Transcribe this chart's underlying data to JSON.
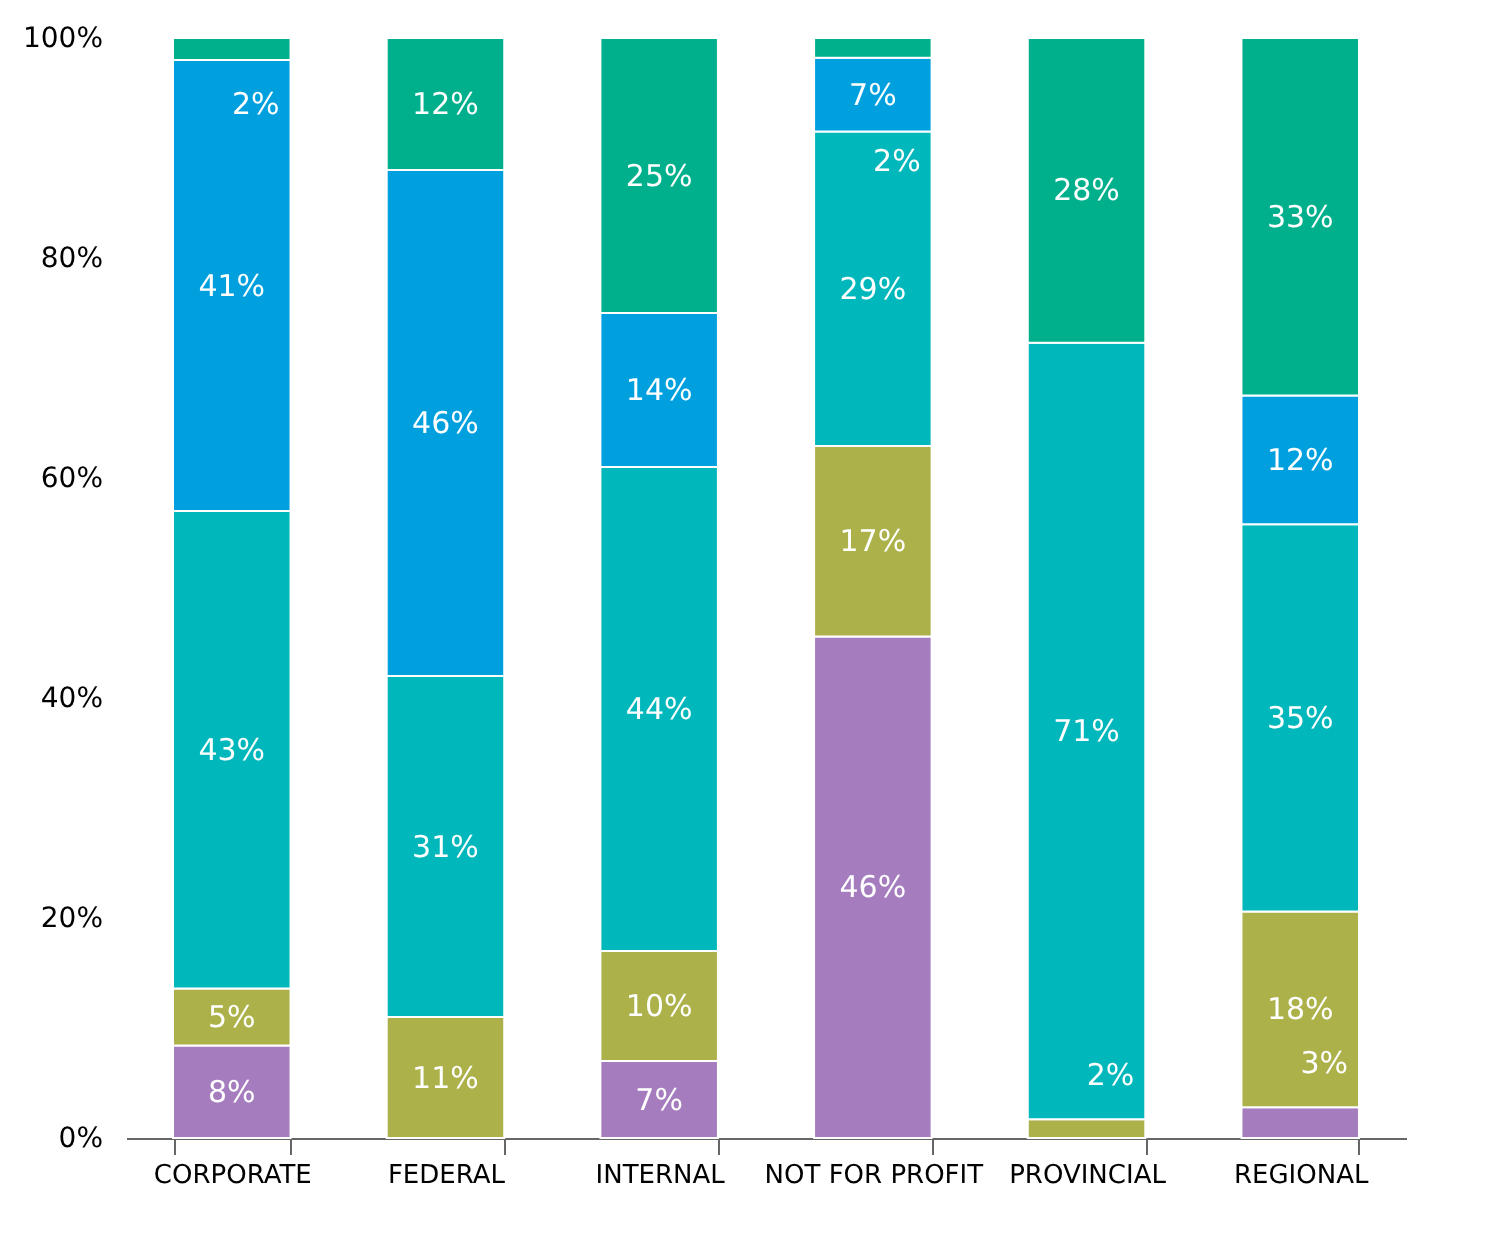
{
  "chart_data": {
    "type": "bar",
    "stacked": true,
    "categories": [
      "CORPORATE",
      "FEDERAL",
      "INTERNAL",
      "NOT FOR PROFIT",
      "PROVINCIAL",
      "REGIONAL"
    ],
    "series": [
      {
        "color": "#a57dbf",
        "values": [
          8.4,
          null,
          7,
          45.6,
          null,
          2.8
        ],
        "value_labels": [
          "8%",
          null,
          "7%",
          "46%",
          null,
          "3%"
        ]
      },
      {
        "color": "#acb14a",
        "values": [
          5.2,
          11,
          10,
          17.3,
          1.7,
          17.8
        ],
        "value_labels": [
          "5%",
          "11%",
          "10%",
          "17%",
          "2%",
          "18%"
        ]
      },
      {
        "color": "#00b8bc",
        "values": [
          43.4,
          31,
          44,
          28.6,
          70.6,
          35.2
        ],
        "value_labels": [
          "43%",
          "31%",
          "44%",
          "29%",
          "71%",
          "35%"
        ]
      },
      {
        "color": "#00a0df",
        "values": [
          41,
          46,
          14,
          6.7,
          null,
          11.7
        ],
        "value_labels": [
          "41%",
          "46%",
          "14%",
          "7%",
          null,
          "12%"
        ]
      },
      {
        "color": "#00b08c",
        "values": [
          2,
          12,
          25,
          1.8,
          27.7,
          32.5
        ],
        "value_labels": [
          "2%",
          "12%",
          "25%",
          "2%",
          "28%",
          "33%"
        ]
      }
    ],
    "ylim": [
      0,
      100
    ],
    "yticks": [
      {
        "value": 0,
        "label": "0%"
      },
      {
        "value": 20,
        "label": "20%"
      },
      {
        "value": 40,
        "label": "40%"
      },
      {
        "value": 60,
        "label": "60%"
      },
      {
        "value": 80,
        "label": "80%"
      },
      {
        "value": 100,
        "label": "100%"
      }
    ],
    "grid": false,
    "legend": false
  }
}
